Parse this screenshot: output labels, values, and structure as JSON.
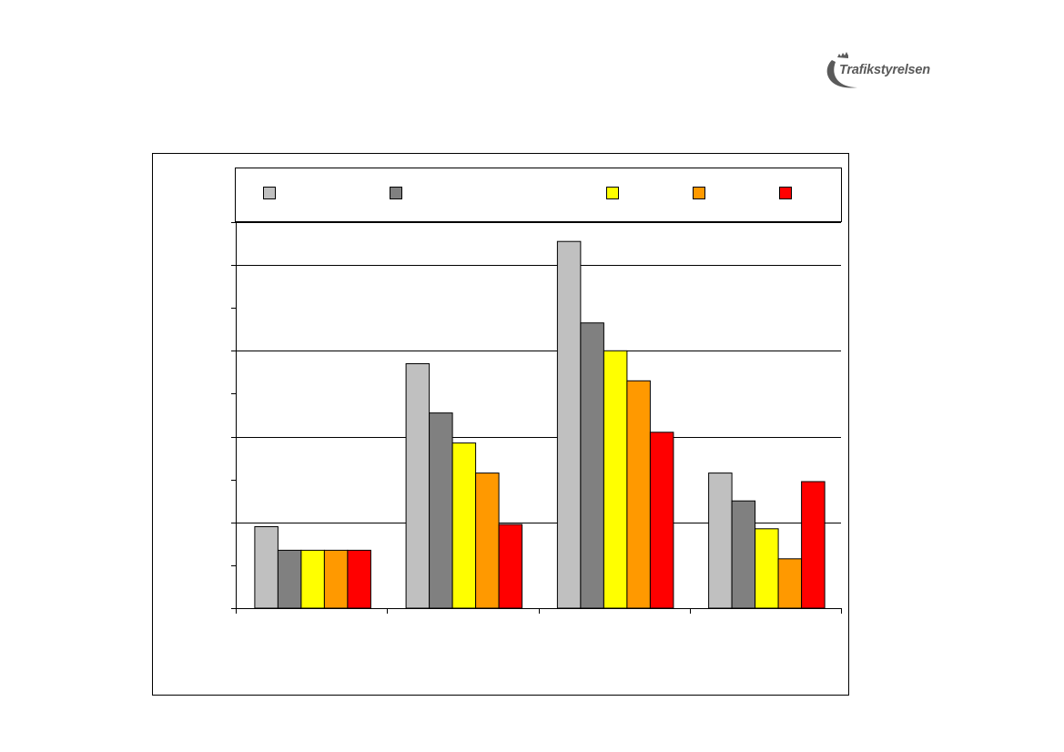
{
  "logo": {
    "text": "Trafikstyrelsen",
    "color": "#5a5a5a",
    "icon": "crown-arc-logo"
  },
  "chart_data": {
    "type": "bar",
    "title": "",
    "xlabel": "",
    "ylabel": "",
    "categories": [
      "",
      "",
      "",
      ""
    ],
    "ylim": [
      0,
      9
    ],
    "grid": true,
    "legend": "top",
    "series": [
      {
        "color": "#C0C0C0",
        "values": [
          1.9,
          5.7,
          8.55,
          3.15
        ]
      },
      {
        "color": "#808080",
        "values": [
          1.35,
          4.55,
          6.65,
          2.5
        ]
      },
      {
        "color": "#FFFF00",
        "values": [
          1.35,
          3.85,
          6.0,
          1.85
        ]
      },
      {
        "color": "#FF9900",
        "values": [
          1.35,
          3.15,
          5.3,
          1.15
        ]
      },
      {
        "color": "#FF0000",
        "values": [
          1.35,
          1.95,
          4.1,
          2.95
        ]
      }
    ]
  }
}
